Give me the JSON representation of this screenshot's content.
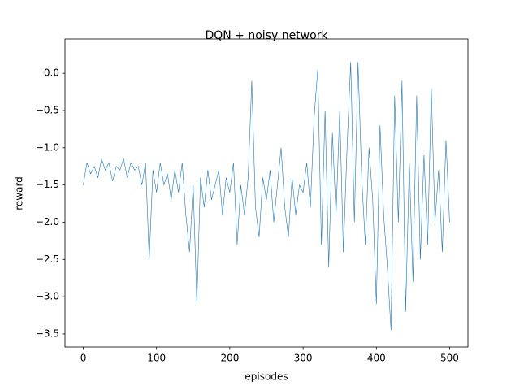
{
  "chart_data": {
    "type": "line",
    "title": "DQN + noisy network",
    "x_label": "episodes",
    "y_label": "reward",
    "x": [
      0,
      5,
      10,
      15,
      20,
      25,
      30,
      35,
      40,
      45,
      50,
      55,
      60,
      65,
      70,
      75,
      80,
      85,
      90,
      95,
      100,
      105,
      110,
      115,
      120,
      125,
      130,
      135,
      140,
      145,
      150,
      155,
      160,
      165,
      170,
      175,
      180,
      185,
      190,
      195,
      200,
      205,
      210,
      215,
      220,
      225,
      230,
      235,
      240,
      245,
      250,
      255,
      260,
      265,
      270,
      275,
      280,
      285,
      290,
      295,
      300,
      305,
      310,
      315,
      320,
      325,
      330,
      335,
      340,
      345,
      350,
      355,
      360,
      365,
      370,
      375,
      380,
      385,
      390,
      395,
      400,
      405,
      410,
      415,
      420,
      425,
      430,
      435,
      440,
      445,
      450,
      455,
      460,
      465,
      470,
      475,
      480,
      485,
      490,
      495,
      500
    ],
    "series": [
      {
        "color": "#1f77b4",
        "values": [
          -1.5,
          -1.2,
          -1.35,
          -1.25,
          -1.4,
          -1.15,
          -1.3,
          -1.2,
          -1.45,
          -1.25,
          -1.3,
          -1.15,
          -1.4,
          -1.2,
          -1.3,
          -1.25,
          -1.5,
          -1.2,
          -2.5,
          -1.3,
          -1.6,
          -1.2,
          -1.5,
          -1.35,
          -1.7,
          -1.3,
          -1.6,
          -1.2,
          -1.9,
          -2.4,
          -1.5,
          -3.1,
          -1.4,
          -1.8,
          -1.3,
          -1.7,
          -1.5,
          -1.3,
          -1.9,
          -1.4,
          -1.6,
          -1.2,
          -2.3,
          -1.5,
          -1.9,
          -1.4,
          -0.1,
          -1.8,
          -2.2,
          -1.4,
          -1.7,
          -1.3,
          -2.0,
          -1.5,
          -1.0,
          -1.8,
          -2.2,
          -1.4,
          -1.9,
          -1.5,
          -1.6,
          -1.2,
          -1.8,
          -0.6,
          0.05,
          -2.3,
          -0.5,
          -2.6,
          -0.8,
          -1.9,
          -0.5,
          -2.4,
          -1.0,
          0.15,
          -2.0,
          0.15,
          -1.4,
          -2.3,
          -1.0,
          -1.7,
          -3.1,
          -0.7,
          -1.9,
          -2.6,
          -3.45,
          -0.3,
          -2.0,
          -0.1,
          -3.2,
          -1.2,
          -2.8,
          -0.3,
          -2.5,
          -1.1,
          -2.3,
          -0.2,
          -2.0,
          -1.3,
          -2.4,
          -0.9,
          -2.0
        ]
      }
    ],
    "xlim": [
      -25,
      525
    ],
    "xticks": [
      0,
      100,
      200,
      300,
      400,
      500
    ],
    "ylim": [
      -3.675,
      0.46
    ],
    "yticks": [
      {
        "value": 0,
        "label": "0.0"
      },
      {
        "value": -0.5,
        "label": "−0.5"
      },
      {
        "value": -1,
        "label": "−1.0"
      },
      {
        "value": -1.5,
        "label": "−1.5"
      },
      {
        "value": -2,
        "label": "−2.0"
      },
      {
        "value": -2.5,
        "label": "−2.5"
      },
      {
        "value": -3,
        "label": "−3.0"
      },
      {
        "value": -3.5,
        "label": "−3.5"
      }
    ]
  }
}
